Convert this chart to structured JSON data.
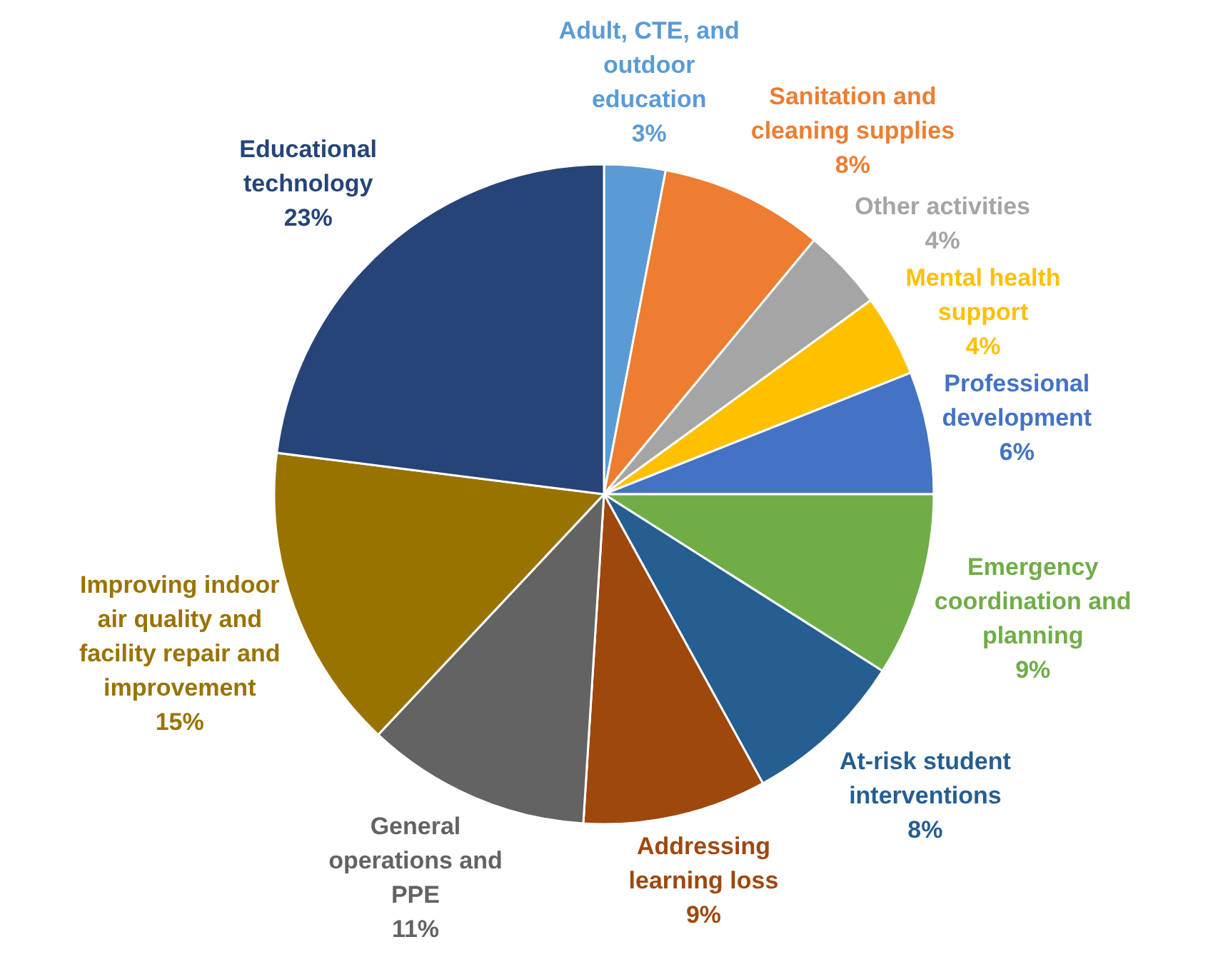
{
  "chart_data": {
    "type": "pie",
    "categories": [
      "Adult, CTE, and outdoor education",
      "Sanitation and cleaning supplies",
      "Other activities",
      "Mental health support",
      "Professional development",
      "Emergency coordination and planning",
      "At-risk student interventions",
      "Addressing learning loss",
      "General operations and PPE",
      "Improving indoor air quality and facility repair and improvement",
      "Educational technology"
    ],
    "values": [
      3,
      8,
      4,
      4,
      6,
      9,
      8,
      9,
      11,
      15,
      23
    ],
    "value_labels": [
      "3%",
      "8%",
      "4%",
      "4%",
      "6%",
      "9%",
      "8%",
      "9%",
      "11%",
      "15%",
      "23%"
    ],
    "colors": [
      "#5b9bd5",
      "#ed7d31",
      "#a5a5a5",
      "#ffc000",
      "#4472c4",
      "#70ad47",
      "#255e91",
      "#9e480e",
      "#636363",
      "#997300",
      "#264478"
    ]
  }
}
